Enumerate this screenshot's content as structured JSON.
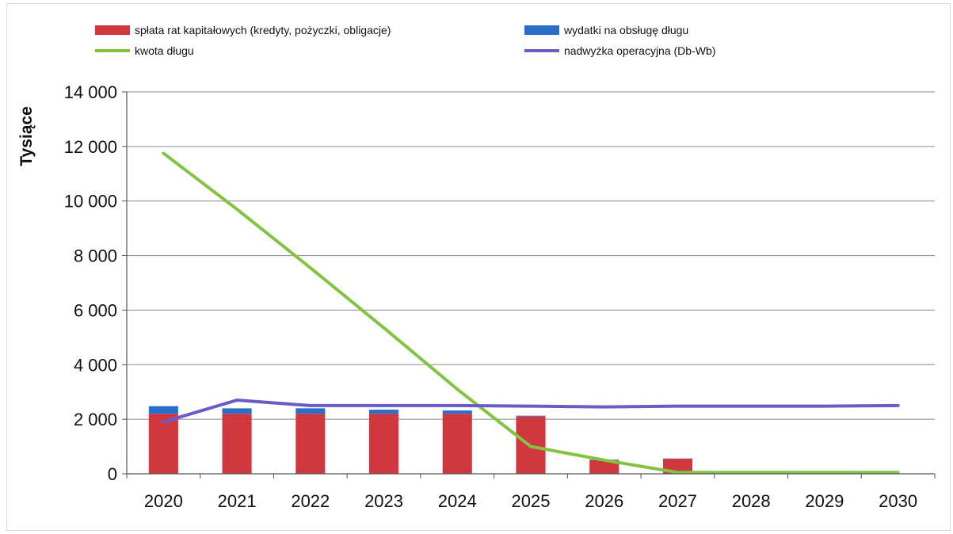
{
  "chart_data": {
    "type": "bar",
    "title": "",
    "xlabel": "",
    "ylabel": "Tysiące",
    "ylim": [
      0,
      14000
    ],
    "yticks": [
      0,
      2000,
      4000,
      6000,
      8000,
      10000,
      12000,
      14000
    ],
    "ytick_labels": [
      "0",
      "2 000",
      "4 000",
      "6 000",
      "8 000",
      "10 000",
      "12 000",
      "14 000"
    ],
    "categories": [
      "2020",
      "2021",
      "2022",
      "2023",
      "2024",
      "2025",
      "2026",
      "2027",
      "2028",
      "2029",
      "2030"
    ],
    "grid": true,
    "legend_position": "top",
    "series": [
      {
        "name": "spłata rat kapitałowych (kredyty, pożyczki, obligacje)",
        "kind": "bar",
        "stack": "debt",
        "color": "#d0373e",
        "values": [
          2200,
          2200,
          2200,
          2200,
          2200,
          2100,
          500,
          550,
          0,
          0,
          0
        ]
      },
      {
        "name": "wydatki na obsługę długu",
        "kind": "bar",
        "stack": "debt",
        "color": "#2a6fc7",
        "values": [
          280,
          200,
          200,
          150,
          120,
          30,
          20,
          10,
          0,
          0,
          0
        ]
      },
      {
        "name": "kwota długu",
        "kind": "line",
        "color": "#82c341",
        "values": [
          11750,
          9700,
          7550,
          5350,
          3100,
          1000,
          500,
          50,
          50,
          50,
          50
        ]
      },
      {
        "name": "nadwyżka operacyjna (Db-Wb)",
        "kind": "line",
        "color": "#6a5bc7",
        "values": [
          1900,
          2700,
          2500,
          2500,
          2500,
          2480,
          2450,
          2480,
          2480,
          2480,
          2500
        ]
      }
    ]
  }
}
